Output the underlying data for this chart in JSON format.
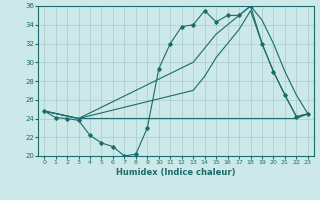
{
  "xlabel": "Humidex (Indice chaleur)",
  "bg_color": "#cce8e8",
  "line_color": "#1a6b6b",
  "grid_color": "#aacccc",
  "xlim": [
    -0.5,
    23.5
  ],
  "ylim": [
    20,
    36
  ],
  "xticks": [
    0,
    1,
    2,
    3,
    4,
    5,
    6,
    7,
    8,
    9,
    10,
    11,
    12,
    13,
    14,
    15,
    16,
    17,
    18,
    19,
    20,
    21,
    22,
    23
  ],
  "yticks": [
    20,
    22,
    24,
    26,
    28,
    30,
    32,
    34,
    36
  ],
  "line_marker_x": [
    0,
    1,
    2,
    3,
    4,
    5,
    6,
    7,
    8,
    9,
    10,
    11,
    12,
    13,
    14,
    15,
    16,
    17,
    18,
    19,
    20,
    21,
    22,
    23
  ],
  "line_marker_y": [
    24.8,
    24.1,
    24.0,
    23.8,
    22.2,
    21.4,
    21.0,
    20.0,
    20.2,
    23.0,
    29.3,
    32.0,
    33.8,
    34.0,
    35.5,
    34.3,
    35.0,
    35.0,
    36.0,
    32.0,
    29.0,
    26.5,
    24.2,
    24.5
  ],
  "line_upper_x": [
    0,
    3,
    13,
    14,
    15,
    16,
    17,
    18,
    19,
    20,
    21,
    22,
    23
  ],
  "line_upper_y": [
    24.8,
    24.0,
    30.0,
    31.5,
    33.0,
    34.0,
    35.0,
    36.0,
    34.5,
    32.0,
    29.0,
    26.5,
    24.5
  ],
  "line_mid_x": [
    0,
    3,
    13,
    14,
    15,
    16,
    17,
    18,
    19,
    20,
    21,
    22,
    23
  ],
  "line_mid_y": [
    24.8,
    24.0,
    27.0,
    28.5,
    30.5,
    32.0,
    33.5,
    35.5,
    32.0,
    29.0,
    26.5,
    24.2,
    24.5
  ],
  "line_flat_x": [
    0,
    3,
    9,
    10,
    11,
    12,
    13,
    14,
    15,
    16,
    17,
    18,
    19,
    20,
    21,
    22,
    23
  ],
  "line_flat_y": [
    24.8,
    24.0,
    24.0,
    24.0,
    24.0,
    24.0,
    24.0,
    24.0,
    24.0,
    24.0,
    24.0,
    24.0,
    24.0,
    24.0,
    24.0,
    24.0,
    24.5
  ]
}
